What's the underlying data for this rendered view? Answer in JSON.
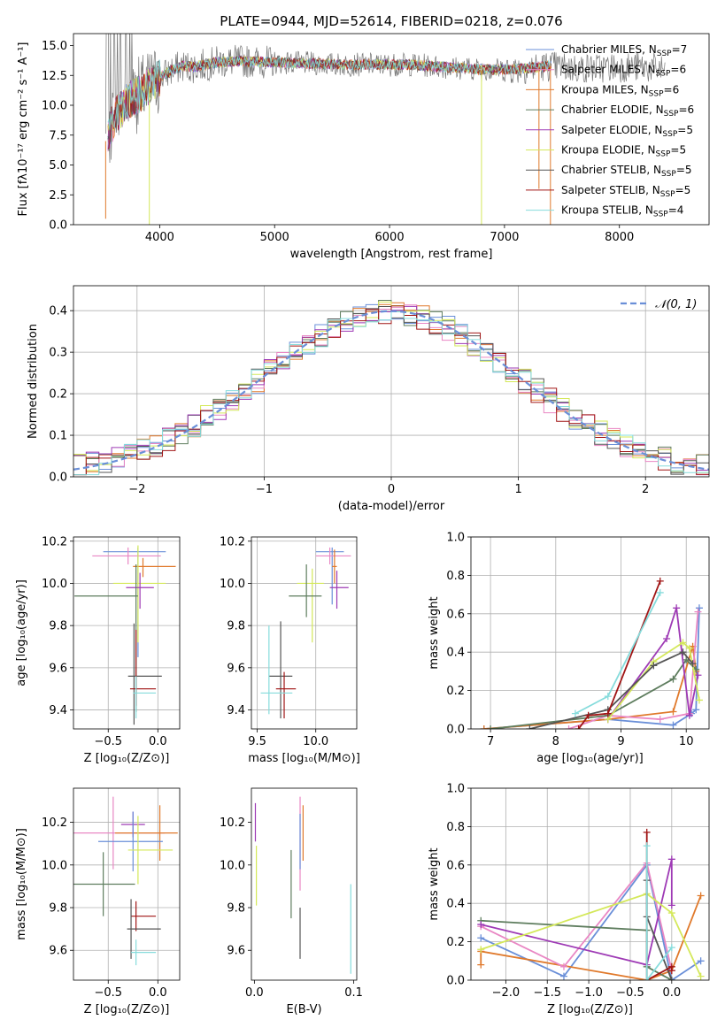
{
  "colors": {
    "blue": "#6a8fd8",
    "orange": "#e0792b",
    "pink": "#e987c4",
    "green": "#5e7d5e",
    "purple": "#9e3ab5",
    "yellow": "#d4e85a",
    "dark": "#555555",
    "red": "#a01515",
    "cyan": "#86dcdc",
    "grid": "#b0b0b0"
  },
  "chart_data": [
    {
      "id": "spectrum",
      "type": "line",
      "title": "PLATE=0944, MJD=52614, FIBERID=0218, z=0.076",
      "xlabel": "wavelength [Angstrom, rest frame]",
      "ylabel": "Flux [fλ10⁻¹⁷ erg cm⁻² s⁻¹ A⁻¹]",
      "xlim": [
        3250,
        8780
      ],
      "ylim": [
        0,
        16
      ],
      "xticks": [
        4000,
        5000,
        6000,
        7000,
        8000
      ],
      "yticks": [
        0.0,
        2.5,
        5.0,
        7.5,
        10.0,
        12.5,
        15.0
      ],
      "legend_position": "top-right",
      "legend": [
        {
          "label": "Chabrier MILES, N",
          "sub": "SSP",
          "tail": "=7",
          "color": "blue"
        },
        {
          "label": "Salpeter MILES, N",
          "sub": "SSP",
          "tail": "=6",
          "color": "pink"
        },
        {
          "label": "Kroupa MILES, N",
          "sub": "SSP",
          "tail": "=6",
          "color": "orange"
        },
        {
          "label": "Chabrier ELODIE, N",
          "sub": "SSP",
          "tail": "=6",
          "color": "green"
        },
        {
          "label": "Salpeter ELODIE, N",
          "sub": "SSP",
          "tail": "=5",
          "color": "purple"
        },
        {
          "label": "Kroupa ELODIE, N",
          "sub": "SSP",
          "tail": "=5",
          "color": "yellow"
        },
        {
          "label": "Chabrier STELIB, N",
          "sub": "SSP",
          "tail": "=5",
          "color": "dark"
        },
        {
          "label": "Salpeter STELIB, N",
          "sub": "SSP",
          "tail": "=5",
          "color": "red"
        },
        {
          "label": "Kroupa STELIB, N",
          "sub": "SSP",
          "tail": "=4",
          "color": "cyan"
        }
      ],
      "continuum": {
        "x": [
          3530,
          3600,
          3700,
          3800,
          3900,
          4000,
          4100,
          4200,
          4300,
          4500,
          4700,
          5000,
          5300,
          5600,
          5900,
          6200,
          6500,
          6800,
          7000,
          7200,
          7400,
          7600,
          7800,
          8000,
          8200,
          8400
        ],
        "y": [
          7.0,
          8.8,
          10.2,
          10.8,
          11.5,
          12.3,
          12.9,
          13.3,
          13.2,
          13.6,
          13.7,
          13.6,
          13.5,
          13.4,
          13.4,
          13.4,
          13.2,
          13.0,
          13.0,
          13.1,
          13.3,
          13.1,
          13.1,
          13.2,
          13.2,
          13.0
        ]
      },
      "data_range": [
        3530,
        8400
      ],
      "model_range": [
        3550,
        7410
      ],
      "dropouts": [
        {
          "x": 3530,
          "y": 0.5,
          "color": "orange"
        },
        {
          "x": 3910,
          "y": 0.0,
          "color": "yellow"
        },
        {
          "x": 6800,
          "y": 0.0,
          "color": "yellow"
        },
        {
          "x": 7300,
          "y": 3.0,
          "color": "orange"
        },
        {
          "x": 7400,
          "y": 0.0,
          "color": "orange"
        }
      ]
    },
    {
      "id": "residuals",
      "type": "histogram",
      "xlabel": "(data-model)/error",
      "ylabel": "Normed distribution",
      "xlim": [
        -2.5,
        2.5
      ],
      "ylim": [
        0,
        0.46
      ],
      "xticks": [
        -2,
        -1,
        0,
        1,
        2
      ],
      "yticks": [
        0.0,
        0.1,
        0.2,
        0.3,
        0.4
      ],
      "bin_edges": [
        -2.5,
        2.5
      ],
      "bins": 50,
      "legend_position": "top-right",
      "reference": {
        "label": "𝒩(0, 1)",
        "mean": 0,
        "sigma": 1,
        "color": "blue"
      },
      "series_colors": [
        "blue",
        "orange",
        "pink",
        "green",
        "purple",
        "yellow",
        "dark",
        "red",
        "cyan"
      ]
    },
    {
      "id": "age-vs-Z",
      "type": "errorbar",
      "xlabel": "Z [log₁₀(Z/Z⊙)]",
      "ylabel": "age  [log₁₀(age/yr)]",
      "xlim": [
        -0.85,
        0.22
      ],
      "ylim": [
        9.31,
        10.22
      ],
      "xticks": [
        -0.5,
        0.0
      ],
      "yticks": [
        9.4,
        9.6,
        9.8,
        10.0,
        10.2
      ],
      "points": [
        {
          "color": "blue",
          "x": -0.2,
          "xerr": [
            0.35,
            0.28
          ],
          "y": 10.15,
          "yerr": [
            0.5,
            0.02
          ]
        },
        {
          "color": "pink",
          "x": -0.3,
          "xerr": [
            0.36,
            0.33
          ],
          "y": 10.13,
          "yerr": [
            0.04,
            0.04
          ]
        },
        {
          "color": "orange",
          "x": -0.15,
          "xerr": [
            0.1,
            0.33
          ],
          "y": 10.08,
          "yerr": [
            0.05,
            0.04
          ]
        },
        {
          "color": "yellow",
          "x": -0.2,
          "xerr": [
            0.25,
            0.28
          ],
          "y": 10.0,
          "yerr": [
            0.28,
            0.18
          ]
        },
        {
          "color": "purple",
          "x": -0.18,
          "xerr": [
            0.14,
            0.14
          ],
          "y": 9.98,
          "yerr": [
            0.1,
            0.07
          ]
        },
        {
          "color": "green",
          "x": -0.22,
          "xerr": [
            0.62,
            0.02
          ],
          "y": 9.94,
          "yerr": [
            0.55,
            0.15
          ]
        },
        {
          "color": "dark",
          "x": -0.24,
          "xerr": [
            0.06,
            0.28
          ],
          "y": 9.56,
          "yerr": [
            0.23,
            0.25
          ]
        },
        {
          "color": "red",
          "x": -0.22,
          "xerr": [
            0.06,
            0.2
          ],
          "y": 9.5,
          "yerr": [
            0.08,
            0.28
          ]
        },
        {
          "color": "cyan",
          "x": -0.22,
          "xerr": [
            0.03,
            0.2
          ],
          "y": 9.48,
          "yerr": [
            0.12,
            0.08
          ]
        }
      ]
    },
    {
      "id": "age-vs-mass",
      "type": "errorbar",
      "xlabel": "mass [log₁₀(M/M⊙)]",
      "ylabel": "",
      "xlim": [
        9.45,
        10.35
      ],
      "ylim": [
        9.31,
        10.22
      ],
      "xticks": [
        9.5,
        10.0
      ],
      "yticks": [
        9.4,
        9.6,
        9.8,
        10.0,
        10.2
      ],
      "points": [
        {
          "color": "blue",
          "x": 10.14,
          "xerr": [
            0.14,
            0.1
          ],
          "y": 10.15,
          "yerr": [
            0.25,
            0.02
          ]
        },
        {
          "color": "pink",
          "x": 10.12,
          "xerr": [
            0.12,
            0.18
          ],
          "y": 10.13,
          "yerr": [
            0.04,
            0.04
          ]
        },
        {
          "color": "orange",
          "x": 10.16,
          "xerr": [
            0.02,
            0.02
          ],
          "y": 10.08,
          "yerr": [
            0.08,
            0.08
          ]
        },
        {
          "color": "yellow",
          "x": 9.97,
          "xerr": [
            0.13,
            0.1
          ],
          "y": 10.0,
          "yerr": [
            0.28,
            0.07
          ]
        },
        {
          "color": "purple",
          "x": 10.18,
          "xerr": [
            0.06,
            0.1
          ],
          "y": 9.98,
          "yerr": [
            0.1,
            0.08
          ]
        },
        {
          "color": "green",
          "x": 9.92,
          "xerr": [
            0.15,
            0.13
          ],
          "y": 9.94,
          "yerr": [
            0.1,
            0.15
          ]
        },
        {
          "color": "dark",
          "x": 9.7,
          "xerr": [
            0.1,
            0.1
          ],
          "y": 9.56,
          "yerr": [
            0.2,
            0.26
          ]
        },
        {
          "color": "red",
          "x": 9.73,
          "xerr": [
            0.07,
            0.1
          ],
          "y": 9.5,
          "yerr": [
            0.14,
            0.08
          ]
        },
        {
          "color": "cyan",
          "x": 9.6,
          "xerr": [
            0.07,
            0.2
          ],
          "y": 9.48,
          "yerr": [
            0.1,
            0.32
          ]
        }
      ]
    },
    {
      "id": "massweight-vs-age",
      "type": "line",
      "xlabel": "age  [log₁₀(age/yr)]",
      "ylabel": "mass weight",
      "xlim": [
        6.7,
        10.35
      ],
      "ylim": [
        0,
        1.0
      ],
      "xticks": [
        7,
        8,
        9,
        10
      ],
      "yticks": [
        0.0,
        0.2,
        0.4,
        0.6,
        0.8,
        1.0
      ],
      "series": [
        {
          "color": "blue",
          "x": [
            6.9,
            8.8,
            9.8,
            10.08,
            10.15,
            10.2
          ],
          "y": [
            0.0,
            0.05,
            0.02,
            0.08,
            0.1,
            0.63
          ]
        },
        {
          "color": "orange",
          "x": [
            6.9,
            8.8,
            9.8,
            10.1,
            10.15
          ],
          "y": [
            0.0,
            0.05,
            0.09,
            0.43,
            0.3
          ]
        },
        {
          "color": "pink",
          "x": [
            8.2,
            8.8,
            9.6,
            10.05,
            10.18
          ],
          "y": [
            0.0,
            0.07,
            0.05,
            0.08,
            0.61
          ]
        },
        {
          "color": "green",
          "x": [
            7.0,
            8.8,
            9.8,
            10.0,
            10.15
          ],
          "y": [
            0.0,
            0.07,
            0.26,
            0.36,
            0.31
          ]
        },
        {
          "color": "purple",
          "x": [
            8.8,
            9.7,
            9.85,
            10.05,
            10.18
          ],
          "y": [
            0.05,
            0.47,
            0.63,
            0.07,
            0.28
          ]
        },
        {
          "color": "yellow",
          "x": [
            8.8,
            9.5,
            9.95,
            10.05,
            10.2
          ],
          "y": [
            0.05,
            0.35,
            0.45,
            0.42,
            0.15
          ]
        },
        {
          "color": "dark",
          "x": [
            7.6,
            8.8,
            9.5,
            9.95,
            10.1
          ],
          "y": [
            0.0,
            0.1,
            0.33,
            0.4,
            0.34
          ]
        },
        {
          "color": "red",
          "x": [
            8.35,
            8.5,
            8.8,
            9.6
          ],
          "y": [
            0.0,
            0.07,
            0.08,
            0.77
          ]
        },
        {
          "color": "cyan",
          "x": [
            8.3,
            8.8,
            9.6
          ],
          "y": [
            0.08,
            0.17,
            0.71
          ]
        }
      ]
    },
    {
      "id": "mass-vs-Z",
      "type": "errorbar",
      "xlabel": "Z [log₁₀(Z/Z⊙)]",
      "ylabel": "mass [log₁₀(M/M⊙)]",
      "xlim": [
        -0.85,
        0.22
      ],
      "ylim": [
        9.46,
        10.36
      ],
      "xticks": [
        -0.5,
        0.0
      ],
      "yticks": [
        9.6,
        9.8,
        10.0,
        10.2
      ],
      "points": [
        {
          "color": "pink",
          "x": -0.45,
          "xerr": [
            0.4,
            0.52
          ],
          "y": 10.15,
          "yerr": [
            0.17,
            0.17
          ]
        },
        {
          "color": "orange",
          "x": 0.02,
          "xerr": [
            0.45,
            0.18
          ],
          "y": 10.15,
          "yerr": [
            0.13,
            0.13
          ]
        },
        {
          "color": "purple",
          "x": -0.25,
          "xerr": [
            0.12,
            0.12
          ],
          "y": 10.19,
          "yerr": [
            0.06,
            0.06
          ]
        },
        {
          "color": "blue",
          "x": -0.25,
          "xerr": [
            0.35,
            0.3
          ],
          "y": 10.11,
          "yerr": [
            0.14,
            0.14
          ]
        },
        {
          "color": "yellow",
          "x": -0.2,
          "xerr": [
            0.1,
            0.35
          ],
          "y": 10.07,
          "yerr": [
            0.16,
            0.16
          ]
        },
        {
          "color": "green",
          "x": -0.55,
          "xerr": [
            0.3,
            0.32
          ],
          "y": 9.91,
          "yerr": [
            0.15,
            0.15
          ]
        },
        {
          "color": "red",
          "x": -0.22,
          "xerr": [
            0.05,
            0.2
          ],
          "y": 9.76,
          "yerr": [
            0.07,
            0.07
          ]
        },
        {
          "color": "dark",
          "x": -0.27,
          "xerr": [
            0.04,
            0.3
          ],
          "y": 9.7,
          "yerr": [
            0.14,
            0.14
          ]
        },
        {
          "color": "cyan",
          "x": -0.22,
          "xerr": [
            0.05,
            0.2
          ],
          "y": 9.59,
          "yerr": [
            0.06,
            0.06
          ]
        }
      ]
    },
    {
      "id": "mass-vs-EBV",
      "type": "errorbar",
      "xlabel": "E(B-V)",
      "ylabel": "",
      "xlim": [
        -0.003,
        0.103
      ],
      "ylim": [
        9.46,
        10.36
      ],
      "xticks": [
        0.0,
        0.1
      ],
      "yticks": [
        9.6,
        9.8,
        10.0,
        10.2
      ],
      "points": [
        {
          "color": "purple",
          "x": 0.001,
          "y": 10.2,
          "yerr": [
            0.09,
            0.09
          ]
        },
        {
          "color": "pink",
          "x": 0.046,
          "y": 10.1,
          "yerr": [
            0.22,
            0.22
          ]
        },
        {
          "color": "orange",
          "x": 0.049,
          "y": 10.15,
          "yerr": [
            0.13,
            0.13
          ]
        },
        {
          "color": "blue",
          "x": 0.046,
          "y": 10.11,
          "yerr": [
            0.13,
            0.13
          ]
        },
        {
          "color": "yellow",
          "x": 0.002,
          "y": 9.95,
          "yerr": [
            0.14,
            0.14
          ]
        },
        {
          "color": "green",
          "x": 0.037,
          "y": 9.91,
          "yerr": [
            0.16,
            0.16
          ]
        },
        {
          "color": "dark",
          "x": 0.046,
          "y": 9.68,
          "yerr": [
            0.12,
            0.12
          ]
        },
        {
          "color": "cyan",
          "x": 0.097,
          "y": 9.7,
          "yerr": [
            0.21,
            0.21
          ]
        }
      ]
    },
    {
      "id": "massweight-vs-Z",
      "type": "line",
      "xlabel": "Z [log₁₀(Z/Z⊙)]",
      "ylabel": "mass weight",
      "xlim": [
        -2.42,
        0.45
      ],
      "ylim": [
        0,
        1.0
      ],
      "xticks": [
        -2.0,
        -1.5,
        -1.0,
        -0.5,
        0.0
      ],
      "yticks": [
        0.0,
        0.2,
        0.4,
        0.6,
        0.8,
        1.0
      ],
      "series": [
        {
          "color": "blue",
          "x": [
            -2.3,
            -1.3,
            -0.3,
            0.0,
            0.35
          ],
          "y": [
            0.22,
            0.02,
            0.6,
            0.0,
            0.1
          ]
        },
        {
          "color": "orange",
          "x": [
            -2.3,
            -2.3,
            -0.3,
            0.0,
            0.35
          ],
          "y": [
            0.08,
            0.15,
            0.0,
            0.05,
            0.44
          ]
        },
        {
          "color": "pink",
          "x": [
            -2.3,
            -1.3,
            -0.3,
            0.0
          ],
          "y": [
            0.28,
            0.07,
            0.61,
            0.05
          ]
        },
        {
          "color": "green",
          "x": [
            -2.3,
            -0.3,
            -0.3,
            0.0
          ],
          "y": [
            0.31,
            0.26,
            0.07,
            0.0
          ]
        },
        {
          "color": "purple",
          "x": [
            -2.3,
            -0.3,
            0.0,
            0.0
          ],
          "y": [
            0.29,
            0.08,
            0.63,
            0.39
          ]
        },
        {
          "color": "yellow",
          "x": [
            -2.3,
            -0.3,
            0.0,
            0.35
          ],
          "y": [
            0.16,
            0.45,
            0.35,
            0.02
          ]
        },
        {
          "color": "dark",
          "x": [
            -0.3,
            -0.3,
            0.0
          ],
          "y": [
            0.52,
            0.33,
            0.0
          ]
        },
        {
          "color": "red",
          "x": [
            -0.3,
            -0.3,
            0.0,
            0.0
          ],
          "y": [
            0.77,
            0.0,
            0.07,
            0.05
          ]
        },
        {
          "color": "cyan",
          "x": [
            -0.3,
            -0.3,
            0.0
          ],
          "y": [
            0.7,
            0.0,
            0.17
          ]
        }
      ]
    }
  ]
}
